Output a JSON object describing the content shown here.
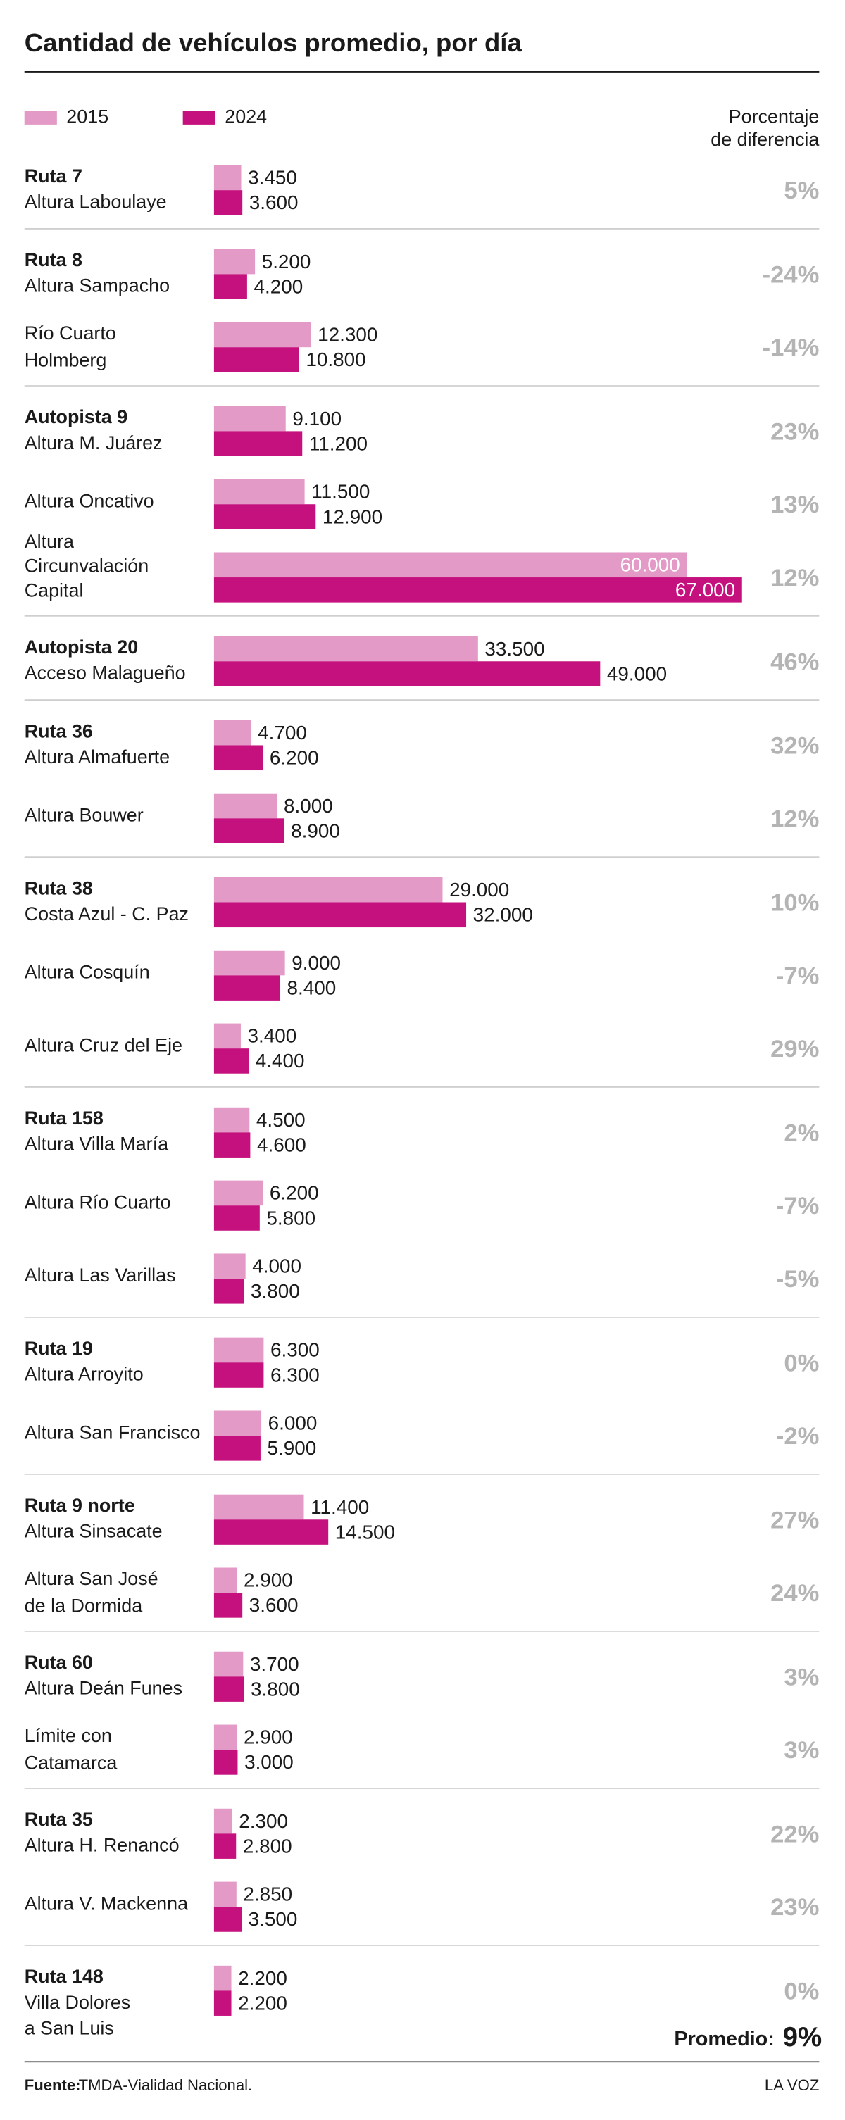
{
  "chart_data": {
    "type": "bar",
    "title": "Cantidad de vehículos promedio, por día",
    "difference_header": [
      "Porcentaje",
      "de diferencia"
    ],
    "series": [
      {
        "name": "2015",
        "color": "#e39ac6"
      },
      {
        "name": "2024",
        "color": "#c5117d"
      }
    ],
    "xlim": [
      0,
      67000
    ],
    "groups": [
      {
        "name": "Ruta 7",
        "rows": [
          {
            "place": [
              "Altura Laboulaye"
            ],
            "values": [
              3450,
              3600
            ],
            "value_labels": [
              "3.450",
              "3.600"
            ],
            "difference": 5,
            "difference_label": "5%"
          }
        ]
      },
      {
        "name": "Ruta 8",
        "rows": [
          {
            "place": [
              "Altura Sampacho"
            ],
            "values": [
              5200,
              4200
            ],
            "value_labels": [
              "5.200",
              "4.200"
            ],
            "difference": -24,
            "difference_label": "-24%"
          },
          {
            "place": [
              "Río Cuarto",
              "Holmberg"
            ],
            "values": [
              12300,
              10800
            ],
            "value_labels": [
              "12.300",
              "10.800"
            ],
            "difference": -14,
            "difference_label": "-14%"
          }
        ]
      },
      {
        "name": "Autopista 9",
        "rows": [
          {
            "place": [
              "Altura M. Juárez"
            ],
            "values": [
              9100,
              11200
            ],
            "value_labels": [
              "9.100",
              "11.200"
            ],
            "difference": 23,
            "difference_label": "23%"
          },
          {
            "place": [
              "Altura Oncativo"
            ],
            "values": [
              11500,
              12900
            ],
            "value_labels": [
              "11.500",
              "12.900"
            ],
            "difference": 13,
            "difference_label": "13%"
          },
          {
            "place": [
              "Altura",
              "Circunvalación",
              "Capital"
            ],
            "values": [
              60000,
              67000
            ],
            "value_labels": [
              "60.000",
              "67.000"
            ],
            "difference": 12,
            "difference_label": "12%"
          }
        ]
      },
      {
        "name": "Autopista 20",
        "rows": [
          {
            "place": [
              "Acceso Malagueño"
            ],
            "values": [
              33500,
              49000
            ],
            "value_labels": [
              "33.500",
              "49.000"
            ],
            "difference": 46,
            "difference_label": "46%"
          }
        ]
      },
      {
        "name": "Ruta 36",
        "rows": [
          {
            "place": [
              "Altura Almafuerte"
            ],
            "values": [
              4700,
              6200
            ],
            "value_labels": [
              "4.700",
              "6.200"
            ],
            "difference": 32,
            "difference_label": "32%"
          },
          {
            "place": [
              "Altura Bouwer"
            ],
            "values": [
              8000,
              8900
            ],
            "value_labels": [
              "8.000",
              "8.900"
            ],
            "difference": 12,
            "difference_label": "12%"
          }
        ]
      },
      {
        "name": "Ruta 38",
        "rows": [
          {
            "place": [
              "Costa Azul - C. Paz"
            ],
            "values": [
              29000,
              32000
            ],
            "value_labels": [
              "29.000",
              "32.000"
            ],
            "difference": 10,
            "difference_label": "10%"
          },
          {
            "place": [
              "Altura Cosquín"
            ],
            "values": [
              9000,
              8400
            ],
            "value_labels": [
              "9.000",
              "8.400"
            ],
            "difference": -7,
            "difference_label": "-7%"
          },
          {
            "place": [
              "Altura Cruz del Eje"
            ],
            "values": [
              3400,
              4400
            ],
            "value_labels": [
              "3.400",
              "4.400"
            ],
            "difference": 29,
            "difference_label": "29%"
          }
        ]
      },
      {
        "name": "Ruta 158",
        "rows": [
          {
            "place": [
              "Altura Villa María"
            ],
            "values": [
              4500,
              4600
            ],
            "value_labels": [
              "4.500",
              "4.600"
            ],
            "difference": 2,
            "difference_label": "2%"
          },
          {
            "place": [
              "Altura Río Cuarto"
            ],
            "values": [
              6200,
              5800
            ],
            "value_labels": [
              "6.200",
              "5.800"
            ],
            "difference": -7,
            "difference_label": "-7%"
          },
          {
            "place": [
              "Altura Las Varillas"
            ],
            "values": [
              4000,
              3800
            ],
            "value_labels": [
              "4.000",
              "3.800"
            ],
            "difference": -5,
            "difference_label": "-5%"
          }
        ]
      },
      {
        "name": "Ruta 19",
        "rows": [
          {
            "place": [
              "Altura Arroyito"
            ],
            "values": [
              6300,
              6300
            ],
            "value_labels": [
              "6.300",
              "6.300"
            ],
            "difference": 0,
            "difference_label": "0%"
          },
          {
            "place": [
              "Altura San Francisco"
            ],
            "values": [
              6000,
              5900
            ],
            "value_labels": [
              "6.000",
              "5.900"
            ],
            "difference": -2,
            "difference_label": "-2%"
          }
        ]
      },
      {
        "name": "Ruta 9 norte",
        "rows": [
          {
            "place": [
              "Altura Sinsacate"
            ],
            "values": [
              11400,
              14500
            ],
            "value_labels": [
              "11.400",
              "14.500"
            ],
            "difference": 27,
            "difference_label": "27%"
          },
          {
            "place": [
              "Altura San José",
              "de la Dormida"
            ],
            "values": [
              2900,
              3600
            ],
            "value_labels": [
              "2.900",
              "3.600"
            ],
            "difference": 24,
            "difference_label": "24%"
          }
        ]
      },
      {
        "name": "Ruta 60",
        "rows": [
          {
            "place": [
              "Altura Deán Funes"
            ],
            "values": [
              3700,
              3800
            ],
            "value_labels": [
              "3.700",
              "3.800"
            ],
            "difference": 3,
            "difference_label": "3%"
          },
          {
            "place": [
              "Límite con",
              "Catamarca"
            ],
            "values": [
              2900,
              3000
            ],
            "value_labels": [
              "2.900",
              "3.000"
            ],
            "difference": 3,
            "difference_label": "3%"
          }
        ]
      },
      {
        "name": "Ruta 35",
        "rows": [
          {
            "place": [
              "Altura H. Renancó"
            ],
            "values": [
              2300,
              2800
            ],
            "value_labels": [
              "2.300",
              "2.800"
            ],
            "difference": 22,
            "difference_label": "22%"
          },
          {
            "place": [
              "Altura V. Mackenna"
            ],
            "values": [
              2850,
              3500
            ],
            "value_labels": [
              "2.850",
              "3.500"
            ],
            "difference": 23,
            "difference_label": "23%"
          }
        ]
      },
      {
        "name": "Ruta 148",
        "rows": [
          {
            "place": [
              "Villa Dolores",
              "a San Luis"
            ],
            "values": [
              2200,
              2200
            ],
            "value_labels": [
              "2.200",
              "2.200"
            ],
            "difference": 0,
            "difference_label": "0%"
          }
        ]
      }
    ],
    "average": {
      "label": "Promedio:",
      "value": 9,
      "value_label": "9%"
    },
    "source": {
      "label": "Fuente:",
      "text": "TMDA-Vialidad Nacional."
    },
    "brand": "LA VOZ"
  }
}
